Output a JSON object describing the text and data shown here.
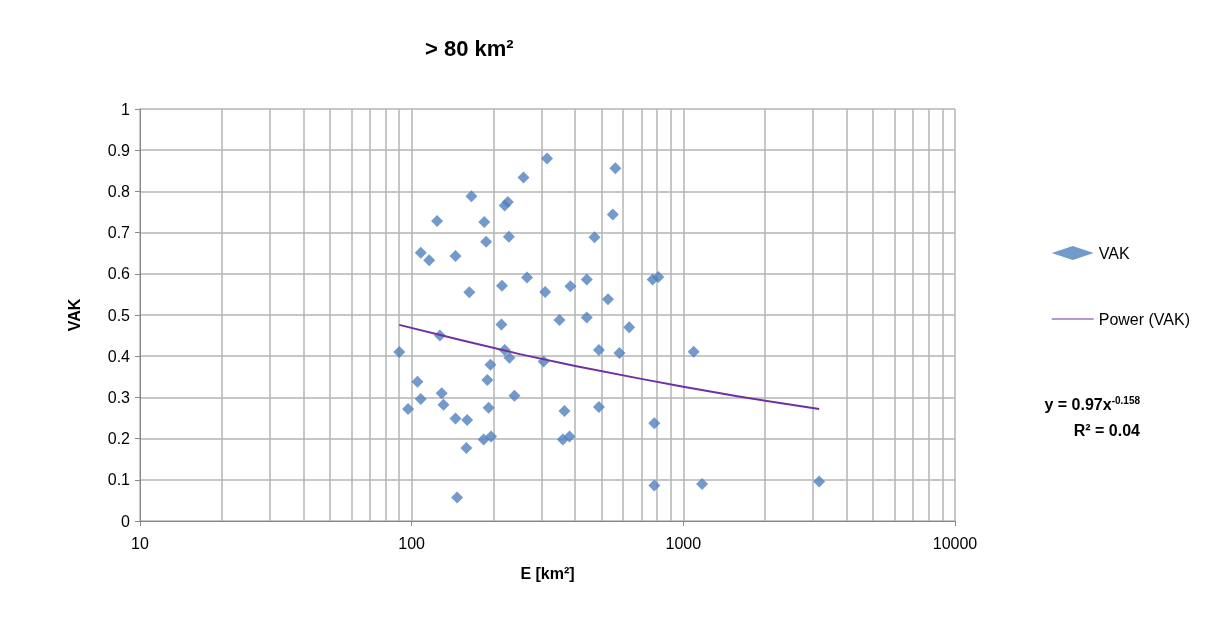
{
  "chart_data": {
    "type": "scatter",
    "title": "> 80 km²",
    "xlabel": "E [km²]",
    "ylabel": "VAK",
    "log": "x",
    "xlim": [
      10,
      10000
    ],
    "xticks": [
      10,
      100,
      1000,
      10000
    ],
    "ylim": [
      0,
      1
    ],
    "yticks": [
      0,
      0.1,
      0.2,
      0.3,
      0.4,
      0.5,
      0.6,
      0.7,
      0.8,
      0.9,
      1
    ],
    "grid": true,
    "legend": "right",
    "marker": "diamond",
    "annotations": [
      "y = 0.97x$^{-0.158}$",
      "R² = 0.04"
    ],
    "series": [
      {
        "name": "VAK",
        "color": "#4f81bd",
        "x": [
          90,
          127,
          214,
          350,
          441,
          632,
          220,
          229,
          306,
          489,
          582,
          195,
          190,
          105,
          129,
          108,
          239,
          97,
          131,
          192,
          489,
          365,
          145,
          160,
          782,
          184,
          196,
          360,
          381,
          159,
          147,
          782,
          315,
          562,
          258,
          166,
          226,
          220,
          550,
          124,
          185,
          188,
          228,
          471,
          108,
          116,
          145,
          163,
          215,
          266,
          310,
          384,
          441,
          528,
          771,
          809,
          3162,
          1172,
          1092
        ],
        "values": [
          0.41,
          0.45,
          0.477,
          0.488,
          0.494,
          0.47,
          0.415,
          0.396,
          0.387,
          0.415,
          0.408,
          0.379,
          0.342,
          0.338,
          0.31,
          0.296,
          0.304,
          0.272,
          0.282,
          0.275,
          0.277,
          0.267,
          0.249,
          0.245,
          0.237,
          0.198,
          0.205,
          0.198,
          0.205,
          0.177,
          0.057,
          0.086,
          0.88,
          0.856,
          0.834,
          0.788,
          0.774,
          0.766,
          0.744,
          0.728,
          0.726,
          0.678,
          0.69,
          0.689,
          0.651,
          0.633,
          0.643,
          0.555,
          0.571,
          0.591,
          0.556,
          0.57,
          0.586,
          0.538,
          0.586,
          0.592,
          0.096,
          0.09,
          0.411
        ]
      },
      {
        "name": "Power (VAK)",
        "type": "line",
        "marker": "none",
        "line_style": "solid",
        "color": "#7030a0",
        "x": [
          90,
          150,
          250,
          400,
          700,
          1000,
          1600,
          2500,
          3162
        ],
        "values": [
          0.476,
          0.44,
          0.405,
          0.376,
          0.345,
          0.326,
          0.302,
          0.282,
          0.272
        ]
      }
    ]
  }
}
